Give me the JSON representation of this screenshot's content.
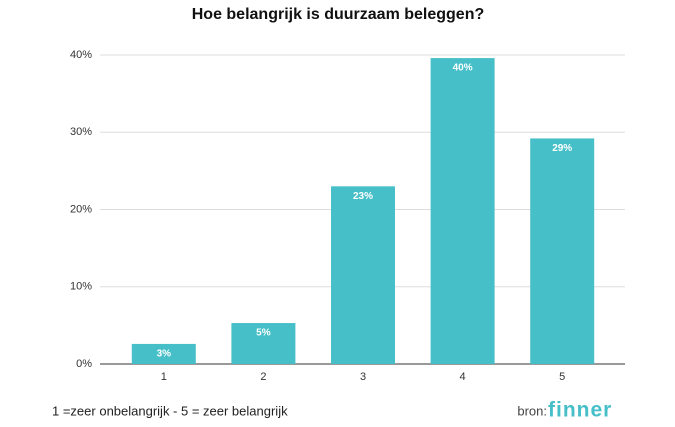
{
  "chart_data": {
    "type": "bar",
    "title": "Hoe belangrijk is duurzaam beleggen?",
    "categories": [
      "1",
      "2",
      "3",
      "4",
      "5"
    ],
    "values": [
      2.6,
      5.3,
      23,
      39.6,
      29.2
    ],
    "value_labels": [
      "3%",
      "5%",
      "23%",
      "40%",
      "29%"
    ],
    "color": "#47bfc8",
    "ylim": [
      0,
      40
    ],
    "yticks": [
      {
        "value": 0,
        "label": "0%"
      },
      {
        "value": 10,
        "label": "10%"
      },
      {
        "value": 20,
        "label": "20%"
      },
      {
        "value": 30,
        "label": "30%"
      },
      {
        "value": 40,
        "label": "40%"
      }
    ],
    "grid": true,
    "caption": "1 =zeer onbelangrijk - 5 = zeer belangrijk",
    "source_label": "bron:",
    "source_name": "finner"
  }
}
